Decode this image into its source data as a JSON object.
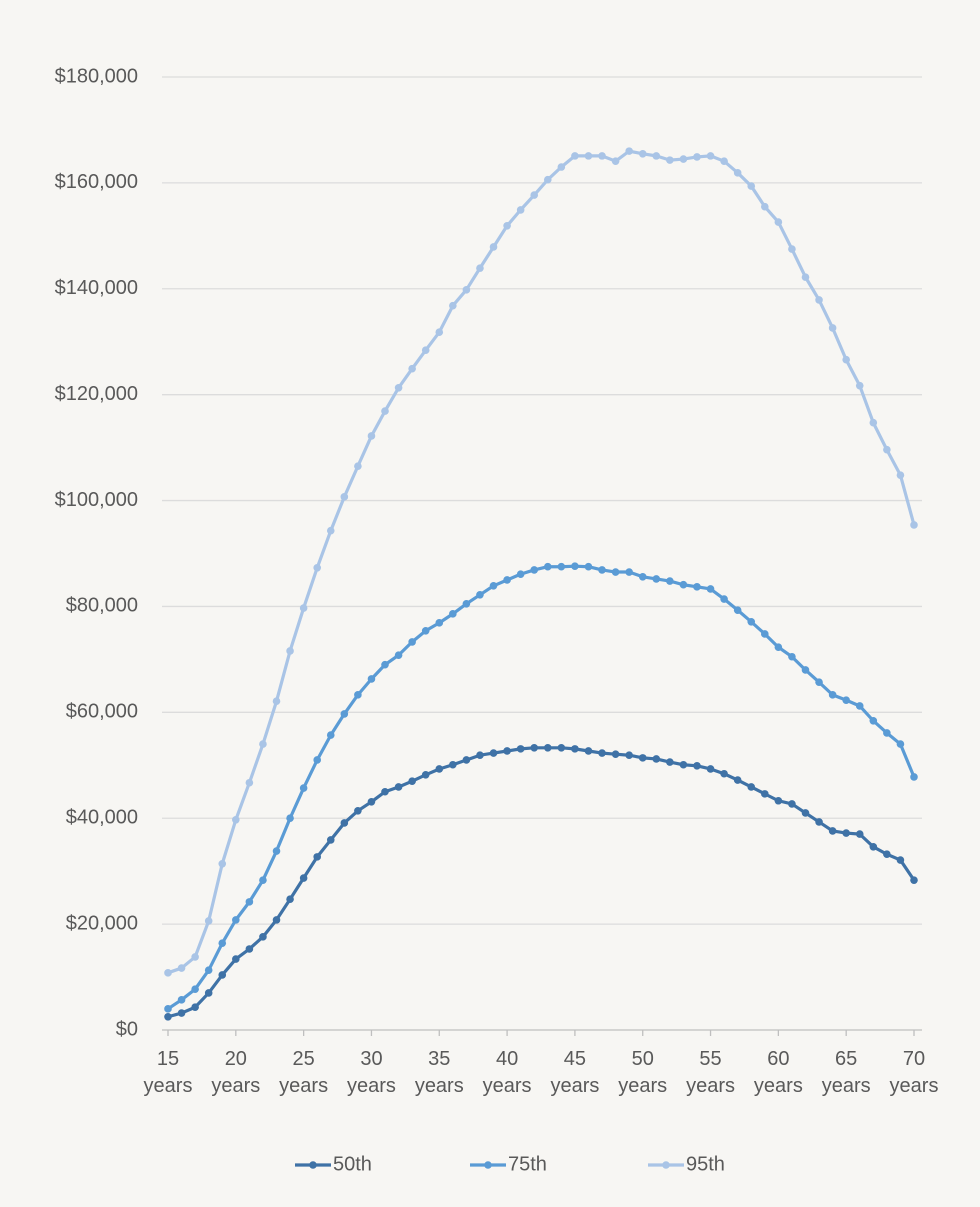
{
  "chart_data": {
    "type": "line",
    "x": [
      15,
      16,
      17,
      18,
      19,
      20,
      21,
      22,
      23,
      24,
      25,
      26,
      27,
      28,
      29,
      30,
      31,
      32,
      33,
      34,
      35,
      36,
      37,
      38,
      39,
      40,
      41,
      42,
      43,
      44,
      45,
      46,
      47,
      48,
      49,
      50,
      51,
      52,
      53,
      54,
      55,
      56,
      57,
      58,
      59,
      60,
      61,
      62,
      63,
      64,
      65,
      66,
      67,
      68,
      69,
      70
    ],
    "series": [
      {
        "name": "50th",
        "color": "#3f72a6",
        "values": [
          2500,
          3200,
          4300,
          7000,
          10400,
          13400,
          15300,
          17600,
          20800,
          24700,
          28700,
          32700,
          35900,
          39100,
          41400,
          43100,
          45000,
          45900,
          47000,
          48200,
          49300,
          50100,
          51000,
          51900,
          52300,
          52700,
          53100,
          53300,
          53300,
          53300,
          53100,
          52700,
          52300,
          52100,
          51900,
          51400,
          51200,
          50600,
          50100,
          49900,
          49300,
          48400,
          47200,
          45900,
          44600,
          43300,
          42700,
          41000,
          39300,
          37600,
          37200,
          37000,
          34600,
          33200,
          32100,
          28300
        ]
      },
      {
        "name": "75th",
        "color": "#5a9bd5",
        "values": [
          4000,
          5700,
          7700,
          11300,
          16400,
          20800,
          24200,
          28300,
          33800,
          40000,
          45700,
          51000,
          55700,
          59700,
          63300,
          66300,
          69000,
          70800,
          73300,
          75400,
          76900,
          78600,
          80500,
          82200,
          83900,
          85000,
          86100,
          86900,
          87500,
          87500,
          87600,
          87500,
          86900,
          86500,
          86500,
          85600,
          85200,
          84800,
          84100,
          83700,
          83300,
          81400,
          79300,
          77100,
          74800,
          72300,
          70500,
          68000,
          65700,
          63300,
          62300,
          61200,
          58400,
          56100,
          54000,
          47800
        ]
      },
      {
        "name": "95th",
        "color": "#a9c4e6",
        "values": [
          10800,
          11700,
          13800,
          20600,
          31400,
          39700,
          46700,
          54000,
          62100,
          71600,
          79700,
          87300,
          94300,
          100700,
          106500,
          112200,
          116900,
          121300,
          124900,
          128400,
          131800,
          136800,
          139800,
          143900,
          147900,
          151900,
          154900,
          157700,
          160600,
          163000,
          165100,
          165100,
          165100,
          164100,
          166000,
          165500,
          165100,
          164300,
          164500,
          164900,
          165100,
          164100,
          161900,
          159400,
          155500,
          152600,
          147500,
          142200,
          137900,
          132600,
          126600,
          121700,
          114700,
          109600,
          104800,
          95400
        ]
      }
    ],
    "xlim": [
      15,
      70
    ],
    "xticks": [
      {
        "value": 15,
        "label": "15 years"
      },
      {
        "value": 20,
        "label": "20 years"
      },
      {
        "value": 25,
        "label": "25 years"
      },
      {
        "value": 30,
        "label": "30 years"
      },
      {
        "value": 35,
        "label": "35 years"
      },
      {
        "value": 40,
        "label": "40 years"
      },
      {
        "value": 45,
        "label": "45 years"
      },
      {
        "value": 50,
        "label": "50 years"
      },
      {
        "value": 55,
        "label": "55 years"
      },
      {
        "value": 60,
        "label": "60 years"
      },
      {
        "value": 65,
        "label": "65 years"
      },
      {
        "value": 70,
        "label": "70 years"
      }
    ],
    "ylim": [
      0,
      180000
    ],
    "yticks": [
      {
        "value": 0,
        "label": "$0"
      },
      {
        "value": 20000,
        "label": "$20,000"
      },
      {
        "value": 40000,
        "label": "$40,000"
      },
      {
        "value": 60000,
        "label": "$60,000"
      },
      {
        "value": 80000,
        "label": "$80,000"
      },
      {
        "value": 100000,
        "label": "$100,000"
      },
      {
        "value": 120000,
        "label": "$120,000"
      },
      {
        "value": 140000,
        "label": "$140,000"
      },
      {
        "value": 160000,
        "label": "$160,000"
      },
      {
        "value": 180000,
        "label": "$180,000"
      }
    ],
    "grid": true,
    "legend": "bottom"
  }
}
